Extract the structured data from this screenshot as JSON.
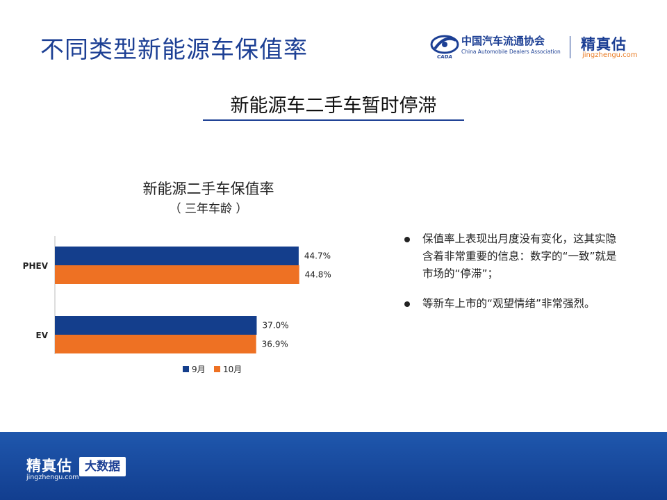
{
  "page_title": "不同类型新能源车保值率",
  "logo_cada": {
    "cn": "中国汽车流通协会",
    "en": "China Automobile Dealers Association",
    "mark_text": "CADA"
  },
  "logo_jzg": {
    "name": "精真估",
    "url": "jingzhengu.com"
  },
  "headline": "新能源车二手车暂时停滞",
  "chart_data": {
    "type": "bar",
    "orientation": "horizontal",
    "title": "新能源二手车保值率",
    "subtitle": "（ 三年车龄 ）",
    "categories": [
      "PHEV",
      "EV"
    ],
    "series": [
      {
        "name": "9月",
        "values": [
          44.7,
          37.0
        ],
        "labels": [
          "44.7%",
          "37.0%"
        ],
        "color": "#143e8c"
      },
      {
        "name": "10月",
        "values": [
          44.8,
          36.9
        ],
        "labels": [
          "44.8%",
          "36.9%"
        ],
        "color": "#ee7123"
      }
    ],
    "xlim": [
      0,
      50
    ],
    "grid": false,
    "legend": "bottom"
  },
  "bullets": [
    "保值率上表现出月度没有变化，这其实隐含着非常重要的信息：数字的“一致”就是市场的“停滞”；",
    "等新车上市的“观望情绪”非常强烈。"
  ],
  "footer": {
    "name": "精真估",
    "url": "jingzhengu.com",
    "badge": "大数据"
  },
  "colors": {
    "brand_blue": "#1c3f94",
    "accent_orange": "#ee7123"
  }
}
